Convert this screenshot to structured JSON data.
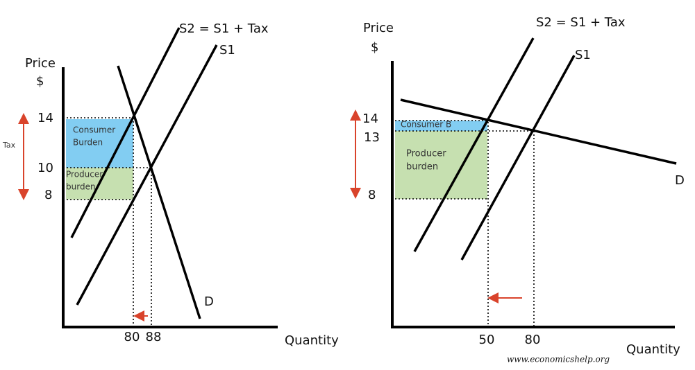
{
  "left": {
    "price_label": "Price",
    "currency": "$",
    "s2_label": "S2 = S1 + Tax",
    "s1_label": "S1",
    "d_label": "D",
    "price_ticks": [
      "14",
      "10",
      "8"
    ],
    "tax_label": "Tax",
    "consumer_burden": [
      "Consumer",
      "Burden"
    ],
    "producer_burden": [
      "Producer",
      "burden"
    ],
    "quantity_ticks": [
      "80",
      "88"
    ],
    "quantity_label": "Quantity"
  },
  "right": {
    "price_label": "Price",
    "currency": "$",
    "s2_label": "S2 = S1 + Tax",
    "s1_label": "S1",
    "d_label": "D",
    "price_ticks": [
      "14",
      "13",
      "8"
    ],
    "consumer_burden": "Consumer B",
    "producer_burden": [
      "Producer",
      "burden"
    ],
    "quantity_ticks": [
      "50",
      "80"
    ],
    "quantity_label": "Quantity"
  },
  "footer": {
    "url": "www.economicshelp.org"
  }
}
